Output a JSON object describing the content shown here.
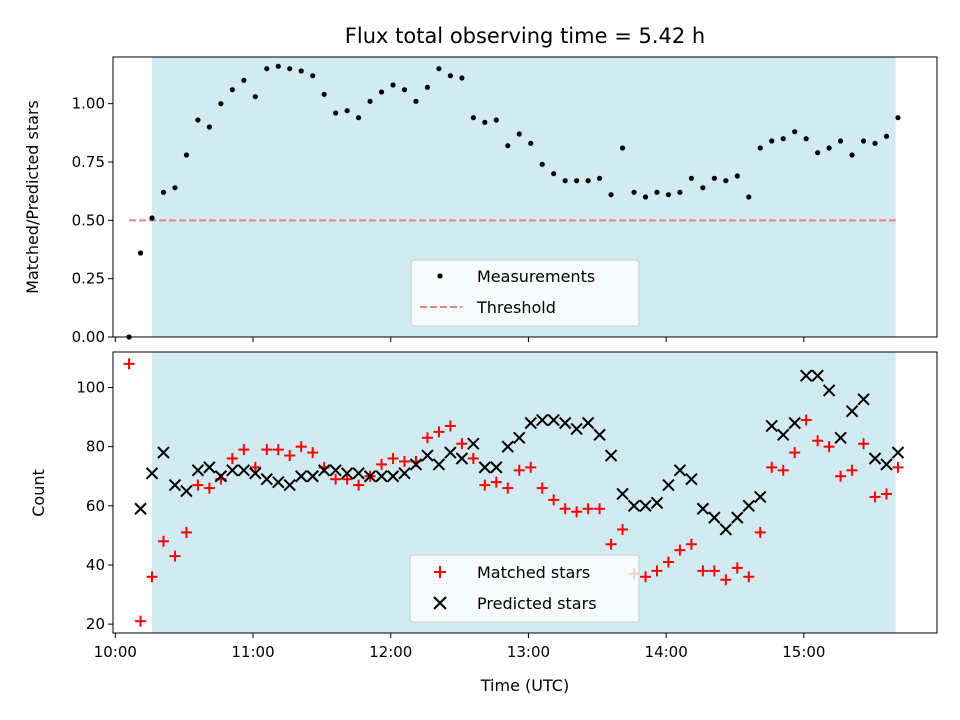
{
  "chart_data": [
    {
      "type": "scatter",
      "title": "Flux total observing time = 5.42 h",
      "xlabel": "",
      "ylabel": "Matched/Predicted stars",
      "xlim": [
        "09:59",
        "15:58"
      ],
      "ylim": [
        0,
        1.2
      ],
      "yticks": [
        0.0,
        0.25,
        0.5,
        0.75,
        1.0
      ],
      "ytick_labels": [
        "0.00",
        "0.25",
        "0.50",
        "0.75",
        "1.00"
      ],
      "shaded_span": [
        "10:16",
        "15:40"
      ],
      "shade_color": "#add8e6",
      "legend_position": "lower-center",
      "series": [
        {
          "name": "Measurements",
          "marker": "dot",
          "color": "#000000",
          "x": [
            "10:06",
            "10:11",
            "10:16",
            "10:21",
            "10:26",
            "10:31",
            "10:36",
            "10:41",
            "10:46",
            "10:51",
            "10:56",
            "11:01",
            "11:06",
            "11:11",
            "11:16",
            "11:21",
            "11:26",
            "11:31",
            "11:36",
            "11:41",
            "11:46",
            "11:51",
            "11:56",
            "12:01",
            "12:06",
            "12:11",
            "12:16",
            "12:21",
            "12:26",
            "12:31",
            "12:36",
            "12:41",
            "12:46",
            "12:51",
            "12:56",
            "13:01",
            "13:06",
            "13:11",
            "13:16",
            "13:21",
            "13:26",
            "13:31",
            "13:36",
            "13:41",
            "13:46",
            "13:51",
            "13:56",
            "14:01",
            "14:06",
            "14:11",
            "14:16",
            "14:21",
            "14:26",
            "14:31",
            "14:36",
            "14:41",
            "14:46",
            "14:51",
            "14:56",
            "15:01",
            "15:06",
            "15:11",
            "15:16",
            "15:21",
            "15:26",
            "15:31",
            "15:36",
            "15:41"
          ],
          "y": [
            0.0,
            0.36,
            0.51,
            0.62,
            0.64,
            0.78,
            0.93,
            0.9,
            1.0,
            1.06,
            1.1,
            1.03,
            1.15,
            1.16,
            1.15,
            1.14,
            1.12,
            1.04,
            0.96,
            0.97,
            0.94,
            1.01,
            1.05,
            1.08,
            1.06,
            1.01,
            1.07,
            1.15,
            1.12,
            1.11,
            0.94,
            0.92,
            0.93,
            0.82,
            0.87,
            0.83,
            0.74,
            0.7,
            0.67,
            0.67,
            0.67,
            0.68,
            0.61,
            0.81,
            0.62,
            0.6,
            0.62,
            0.61,
            0.62,
            0.68,
            0.64,
            0.68,
            0.67,
            0.69,
            0.6,
            0.81,
            0.84,
            0.85,
            0.88,
            0.85,
            0.79,
            0.81,
            0.84,
            0.78,
            0.84,
            0.83,
            0.86,
            0.94
          ]
        },
        {
          "name": "Threshold",
          "marker": "dashed-line",
          "color": "#f08080",
          "x": [
            "10:06",
            "15:40"
          ],
          "y": [
            0.5,
            0.5
          ]
        }
      ]
    },
    {
      "type": "scatter",
      "title": "",
      "xlabel": "Time (UTC)",
      "ylabel": "Count",
      "xlim": [
        "09:59",
        "15:58"
      ],
      "ylim": [
        17,
        112
      ],
      "xticks": [
        "10:00",
        "11:00",
        "12:00",
        "13:00",
        "14:00",
        "15:00"
      ],
      "xtick_labels": [
        "10:00",
        "11:00",
        "12:00",
        "13:00",
        "14:00",
        "15:00"
      ],
      "yticks": [
        20,
        40,
        60,
        80,
        100
      ],
      "ytick_labels": [
        "20",
        "40",
        "60",
        "80",
        "100"
      ],
      "shaded_span": [
        "10:16",
        "15:40"
      ],
      "shade_color": "#add8e6",
      "legend_position": "lower-center",
      "x": [
        "10:06",
        "10:11",
        "10:16",
        "10:21",
        "10:26",
        "10:31",
        "10:36",
        "10:41",
        "10:46",
        "10:51",
        "10:56",
        "11:01",
        "11:06",
        "11:11",
        "11:16",
        "11:21",
        "11:26",
        "11:31",
        "11:36",
        "11:41",
        "11:46",
        "11:51",
        "11:56",
        "12:01",
        "12:06",
        "12:11",
        "12:16",
        "12:21",
        "12:26",
        "12:31",
        "12:36",
        "12:41",
        "12:46",
        "12:51",
        "12:56",
        "13:01",
        "13:06",
        "13:11",
        "13:16",
        "13:21",
        "13:26",
        "13:31",
        "13:36",
        "13:41",
        "13:46",
        "13:51",
        "13:56",
        "14:01",
        "14:06",
        "14:11",
        "14:16",
        "14:21",
        "14:26",
        "14:31",
        "14:36",
        "14:41",
        "14:46",
        "14:51",
        "14:56",
        "15:01",
        "15:06",
        "15:11",
        "15:16",
        "15:21",
        "15:26",
        "15:31",
        "15:36",
        "15:41"
      ],
      "series": [
        {
          "name": "Matched stars",
          "marker": "plus",
          "color": "#ff0000",
          "y": [
            108,
            21,
            36,
            48,
            43,
            51,
            67,
            66,
            69,
            76,
            79,
            73,
            79,
            79,
            77,
            80,
            78,
            73,
            69,
            69,
            67,
            70,
            74,
            76,
            75,
            75,
            83,
            85,
            87,
            81,
            76,
            67,
            68,
            66,
            72,
            73,
            66,
            62,
            59,
            58,
            59,
            59,
            47,
            52,
            37,
            36,
            38,
            41,
            45,
            47,
            38,
            38,
            35,
            39,
            36,
            51,
            73,
            72,
            78,
            89,
            82,
            80,
            70,
            72,
            81,
            63,
            64,
            73
          ]
        },
        {
          "name": "Predicted stars",
          "marker": "x",
          "color": "#000000",
          "y": [
            null,
            59,
            71,
            78,
            67,
            65,
            72,
            73,
            70,
            72,
            72,
            71,
            69,
            68,
            67,
            70,
            70,
            72,
            72,
            71,
            71,
            70,
            70,
            70,
            71,
            74,
            77,
            74,
            78,
            76,
            81,
            73,
            73,
            80,
            83,
            88,
            89,
            89,
            88,
            86,
            88,
            84,
            77,
            64,
            60,
            60,
            61,
            67,
            72,
            69,
            59,
            56,
            52,
            56,
            60,
            63,
            87,
            84,
            88,
            104,
            104,
            99,
            83,
            92,
            96,
            76,
            74,
            78
          ]
        }
      ]
    }
  ]
}
